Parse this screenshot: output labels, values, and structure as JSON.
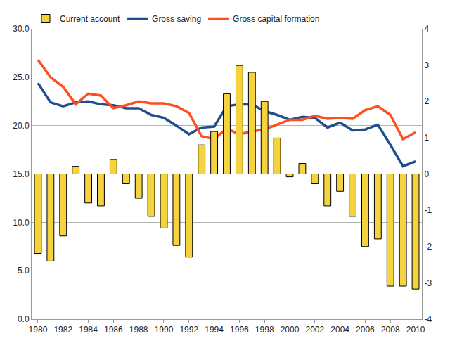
{
  "chart_data": {
    "type": "bar",
    "x": [
      1980,
      1981,
      1982,
      1983,
      1984,
      1985,
      1986,
      1987,
      1988,
      1989,
      1990,
      1991,
      1992,
      1993,
      1994,
      1995,
      1996,
      1997,
      1998,
      1999,
      2000,
      2001,
      2002,
      2003,
      2004,
      2005,
      2006,
      2007,
      2008,
      2009,
      2010
    ],
    "series": [
      {
        "name": "Current account",
        "type": "bar",
        "axis": "y2",
        "color": "#f5d33f",
        "values": [
          -2.19,
          -2.4,
          -1.71,
          0.21,
          -0.8,
          -0.88,
          0.4,
          -0.27,
          -0.67,
          -1.17,
          -1.49,
          -1.97,
          -2.29,
          0.8,
          1.17,
          2.21,
          2.99,
          2.8,
          2.0,
          0.99,
          -0.08,
          0.29,
          -0.27,
          -0.88,
          -0.48,
          -1.17,
          -2.0,
          -1.79,
          -3.09,
          -3.09,
          -3.17
        ]
      },
      {
        "name": "Gross saving",
        "type": "line",
        "color": "#1f4e8c",
        "values": [
          24.4,
          22.4,
          22.0,
          22.4,
          22.5,
          22.2,
          22.1,
          21.8,
          21.8,
          21.1,
          20.8,
          20.0,
          19.1,
          19.8,
          19.9,
          22.0,
          22.2,
          22.2,
          21.5,
          21.1,
          20.6,
          20.9,
          20.8,
          19.8,
          20.3,
          19.5,
          19.6,
          20.1,
          18.0,
          15.8,
          16.3
        ]
      },
      {
        "name": "Gross capital formation",
        "type": "line",
        "color": "#ff4f1f",
        "values": [
          26.8,
          25.0,
          24.0,
          22.2,
          23.3,
          23.1,
          21.8,
          22.1,
          22.5,
          22.3,
          22.3,
          22.0,
          21.3,
          18.9,
          18.6,
          19.7,
          19.1,
          19.4,
          19.6,
          20.1,
          20.6,
          20.6,
          21.0,
          20.7,
          20.8,
          20.7,
          21.6,
          22.0,
          21.1,
          18.6,
          19.3
        ]
      }
    ],
    "xlim": [
      1979.5,
      2010.5
    ],
    "xticks": [
      1980,
      1982,
      1984,
      1986,
      1988,
      1990,
      1992,
      1994,
      1996,
      1998,
      2000,
      2002,
      2004,
      2006,
      2008,
      2010
    ],
    "ylim": [
      0,
      30
    ],
    "yticks": [
      {
        "value": 0,
        "label": "0.0"
      },
      {
        "value": 5,
        "label": "5.0"
      },
      {
        "value": 10,
        "label": "10.0"
      },
      {
        "value": 15,
        "label": "15.0"
      },
      {
        "value": 20,
        "label": "20.0"
      },
      {
        "value": 25,
        "label": "25.0"
      },
      {
        "value": 30,
        "label": "30.0"
      }
    ],
    "y2lim": [
      -4,
      4
    ],
    "y2ticks": [
      -4,
      -3,
      -2,
      -1,
      0,
      1,
      2,
      3,
      4
    ],
    "grid": true,
    "legend": "top"
  }
}
